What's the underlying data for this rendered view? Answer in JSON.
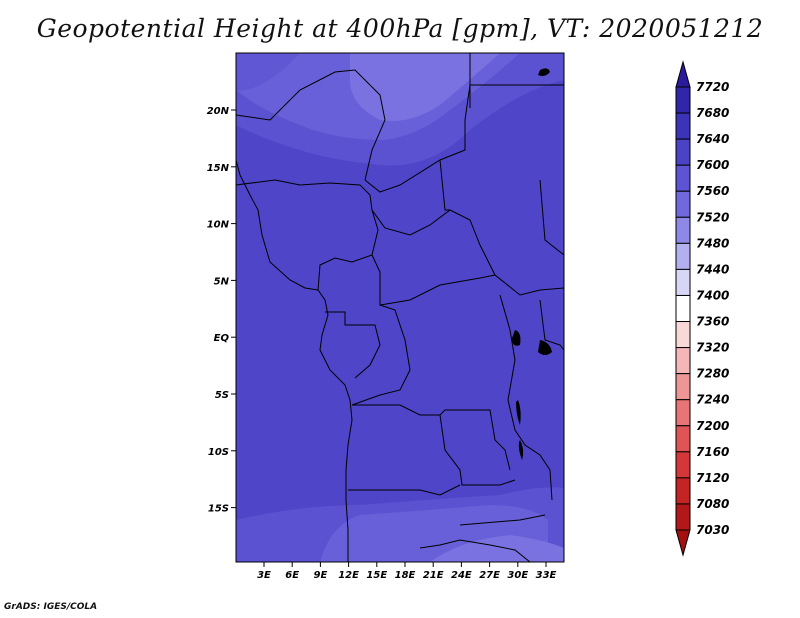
{
  "title": "Geopotential Height at 400hPa [gpm], VT: 2020051212",
  "credit": "GrADS: IGES/COLA",
  "map": {
    "lat_labels": [
      "20N",
      "15N",
      "10N",
      "5N",
      "EQ",
      "5S",
      "10S",
      "15S"
    ],
    "lon_labels": [
      "3E",
      "6E",
      "9E",
      "12E",
      "15E",
      "18E",
      "21E",
      "24E",
      "27E",
      "30E",
      "33E"
    ],
    "background_color": "#4f45c8"
  },
  "colorbar": {
    "labels": [
      "7720",
      "7680",
      "7640",
      "7600",
      "7560",
      "7520",
      "7480",
      "7440",
      "7400",
      "7360",
      "7320",
      "7280",
      "7240",
      "7200",
      "7160",
      "7120",
      "7080",
      "7030"
    ],
    "colors": [
      "#2a1a9c",
      "#3126aa",
      "#3b33b8",
      "#4a43c6",
      "#5c54d2",
      "#7068dc",
      "#8e88e6",
      "#b4b0ef",
      "#d8d6f7",
      "#ffffff",
      "#f9d8d8",
      "#f4b7b7",
      "#ee9696",
      "#e77575",
      "#df5454",
      "#d43737",
      "#c42424",
      "#b31818",
      "#a31010"
    ]
  }
}
